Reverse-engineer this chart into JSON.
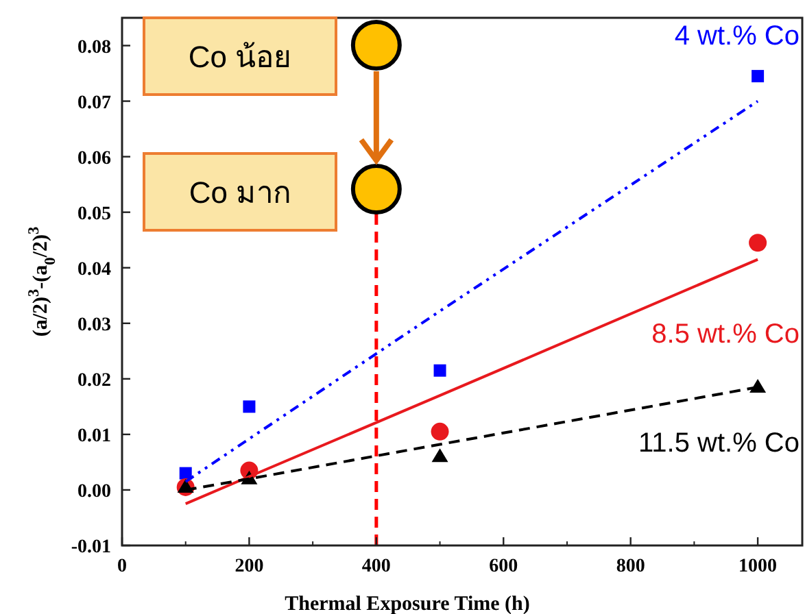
{
  "chart_data": {
    "type": "scatter",
    "xlabel": "Thermal Exposure Time (h)",
    "ylabel": "(a/2)$^{3}$-(a$_{0}$/2)$^{3}$",
    "xlim": [
      0,
      1070
    ],
    "ylim": [
      -0.01,
      0.085
    ],
    "xticks": [
      0,
      200,
      400,
      600,
      800,
      1000
    ],
    "yticks": [
      {
        "value": -0.01,
        "label": "-0.01"
      },
      {
        "value": 0,
        "label": "0.00"
      },
      {
        "value": 0.01,
        "label": "0.01"
      },
      {
        "value": 0.02,
        "label": "0.02"
      },
      {
        "value": 0.03,
        "label": "0.03"
      },
      {
        "value": 0.04,
        "label": "0.04"
      },
      {
        "value": 0.05,
        "label": "0.05"
      },
      {
        "value": 0.06,
        "label": "0.06"
      },
      {
        "value": 0.07,
        "label": "0.07"
      },
      {
        "value": 0.08,
        "label": "0.08"
      }
    ],
    "x": [
      100,
      200,
      500,
      1000
    ],
    "series": [
      {
        "name": "4 wt.% Co",
        "color": "#0000ff",
        "marker": "square",
        "values": [
          0.003,
          0.015,
          0.0215,
          0.0745
        ]
      },
      {
        "name": "8.5 wt.% Co",
        "color": "#e8191e",
        "marker": "circle",
        "values": [
          0.0005,
          0.0035,
          0.0105,
          0.0445
        ]
      },
      {
        "name": "11.5 wt.% Co",
        "color": "#000000",
        "marker": "triangle",
        "values": [
          0.0005,
          0.002,
          0.006,
          0.0185
        ]
      },
      {
        "type": "line",
        "color": "#0000ff",
        "line_style": "dotted",
        "values": [
          0.0015,
          0.0092,
          0.0322,
          0.07
        ]
      },
      {
        "type": "line",
        "color": "#e8191e",
        "line_style": "solid",
        "values": [
          -0.0025,
          0.0024,
          0.017,
          0.0415
        ]
      },
      {
        "type": "line",
        "color": "#000000",
        "line_style": "dashed",
        "values": [
          0.0,
          0.002,
          0.0082,
          0.0185
        ]
      }
    ],
    "ref_lines": [
      {
        "axis": "x",
        "value": 400,
        "color": "#ff0000",
        "line_style": "dashed"
      }
    ],
    "annotations": [
      "Co น้อย",
      "Co มาก"
    ],
    "grid": false
  }
}
